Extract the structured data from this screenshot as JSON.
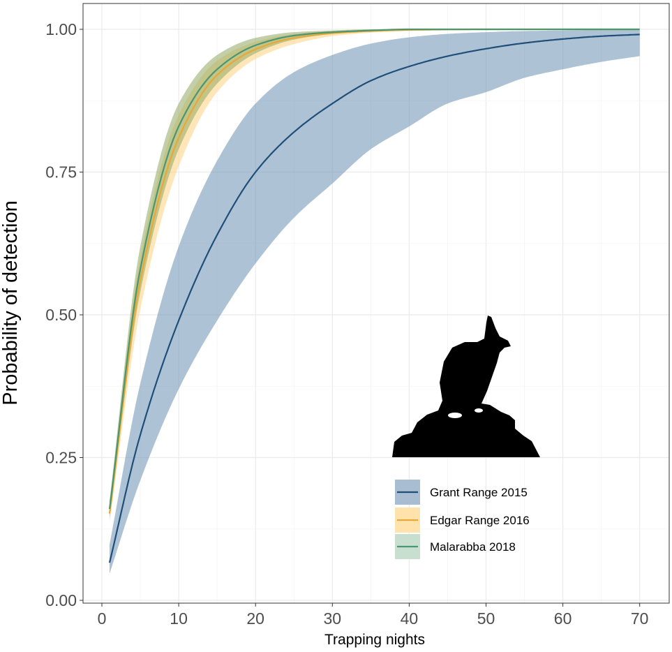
{
  "chart_data": {
    "type": "line",
    "title": "",
    "xlabel": "Trapping nights",
    "ylabel": "Probability of detection",
    "xlim": [
      1,
      70
    ],
    "ylim": [
      0,
      1
    ],
    "x_ticks": [
      0,
      10,
      20,
      30,
      40,
      50,
      60,
      70
    ],
    "x_tick_labels": [
      "0",
      "10",
      "20",
      "30",
      "40",
      "50",
      "60",
      "70"
    ],
    "y_ticks": [
      0,
      0.25,
      0.5,
      0.75,
      1
    ],
    "y_tick_labels": [
      "0.00",
      "0.25",
      "0.50",
      "0.75",
      "1.00"
    ],
    "grid": true,
    "legend_position": "bottom-right",
    "series": [
      {
        "name": "Grant Range 2015",
        "line_color": "#1f4e79",
        "band_color": "#6b8fb5",
        "x": [
          1,
          5,
          10,
          15,
          20,
          25,
          30,
          35,
          40,
          45,
          50,
          55,
          60,
          65,
          70
        ],
        "y": [
          0.066,
          0.29,
          0.49,
          0.64,
          0.75,
          0.82,
          0.87,
          0.91,
          0.935,
          0.953,
          0.966,
          0.976,
          0.983,
          0.988,
          0.991
        ],
        "y_lower": [
          0.047,
          0.21,
          0.37,
          0.49,
          0.59,
          0.67,
          0.73,
          0.79,
          0.83,
          0.87,
          0.89,
          0.915,
          0.93,
          0.943,
          0.953
        ],
        "y_upper": [
          0.098,
          0.38,
          0.62,
          0.77,
          0.87,
          0.925,
          0.955,
          0.975,
          0.986,
          0.992,
          0.995,
          0.997,
          0.998,
          0.999,
          0.999
        ]
      },
      {
        "name": "Edgar Range 2016",
        "line_color": "#e8a838",
        "band_color": "#ffd27f",
        "x": [
          1,
          5,
          10,
          15,
          20,
          25,
          30,
          35,
          40,
          50,
          60,
          70
        ],
        "y": [
          0.152,
          0.56,
          0.81,
          0.92,
          0.965,
          0.985,
          0.993,
          0.997,
          0.999,
          1.0,
          1.0,
          1.0
        ],
        "y_lower": [
          0.137,
          0.51,
          0.76,
          0.89,
          0.948,
          0.974,
          0.988,
          0.994,
          0.997,
          0.999,
          1.0,
          1.0
        ],
        "y_upper": [
          0.168,
          0.6,
          0.85,
          0.945,
          0.978,
          0.992,
          0.997,
          0.999,
          1.0,
          1.0,
          1.0,
          1.0
        ]
      },
      {
        "name": "Malarabba 2018",
        "line_color": "#4a9670",
        "band_color": "#8fa760",
        "x": [
          1,
          5,
          10,
          15,
          20,
          25,
          30,
          35,
          40,
          50,
          60,
          70
        ],
        "y": [
          0.16,
          0.58,
          0.83,
          0.93,
          0.972,
          0.989,
          0.995,
          0.998,
          1.0,
          1.0,
          1.0,
          1.0
        ],
        "y_lower": [
          0.145,
          0.54,
          0.79,
          0.905,
          0.958,
          0.982,
          0.992,
          0.997,
          0.999,
          1.0,
          1.0,
          1.0
        ],
        "y_upper": [
          0.175,
          0.62,
          0.87,
          0.955,
          0.985,
          0.995,
          0.998,
          1.0,
          1.0,
          1.0,
          1.0,
          1.0
        ]
      }
    ],
    "legend_swatches": [
      {
        "line_color": "#1f4e79",
        "fill_color": "#a9bdd2"
      },
      {
        "line_color": "#e8a838",
        "fill_color": "#ffe3aa"
      },
      {
        "line_color": "#4a9670",
        "fill_color": "#c8dfcf"
      }
    ],
    "annotation": "rock-wallaby-silhouette"
  }
}
